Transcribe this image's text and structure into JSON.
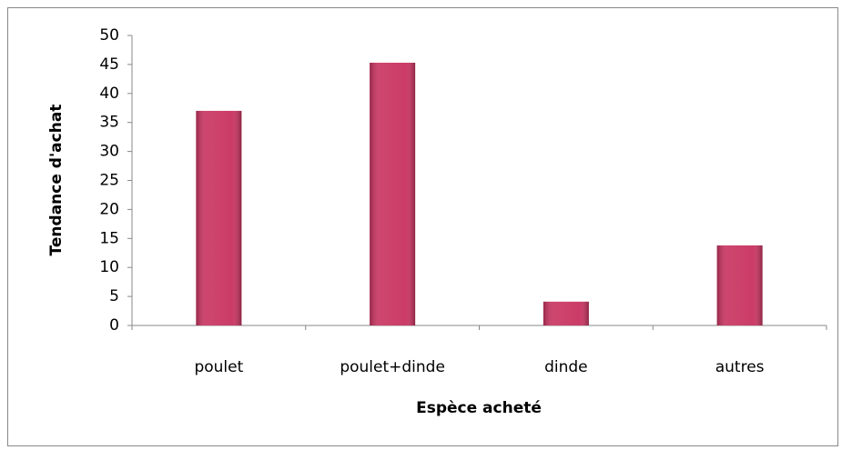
{
  "chart_data": {
    "type": "bar",
    "x_label": "Espèce acheté",
    "y_label": "Tendance d'achat",
    "categories": [
      "poulet",
      "poulet+dinde",
      "dinde",
      "autres"
    ],
    "values": [
      37,
      45.3,
      4.1,
      13.8
    ],
    "color": "#c8325f",
    "ylim": [
      0,
      50
    ],
    "yticks": [
      0,
      5,
      10,
      15,
      20,
      25,
      30,
      35,
      40,
      45,
      50
    ],
    "grid": false
  }
}
